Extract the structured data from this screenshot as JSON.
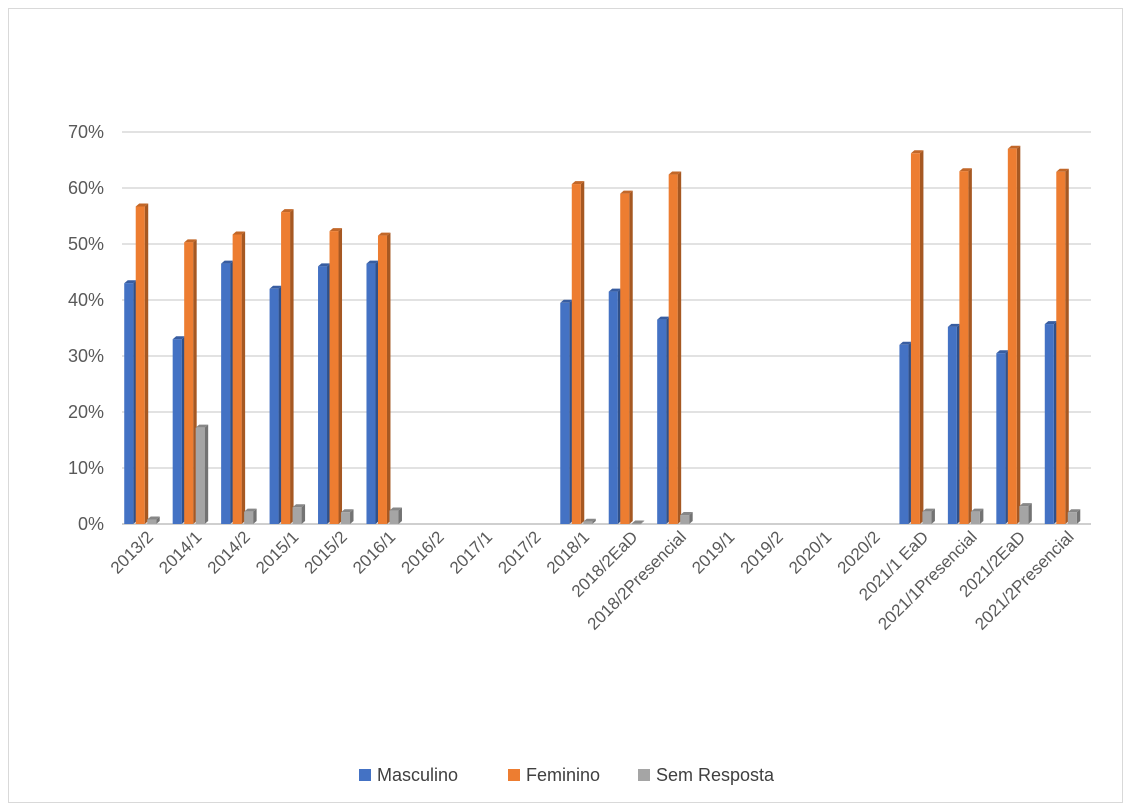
{
  "chart_data": {
    "type": "bar",
    "title": "",
    "xlabel": "",
    "ylabel": "",
    "ylim": [
      0,
      0.7
    ],
    "yticks": [
      "0%",
      "10%",
      "20%",
      "30%",
      "40%",
      "50%",
      "60%",
      "70%"
    ],
    "grid": true,
    "legend_position": "bottom",
    "categories": [
      "2013/2",
      "2014/1",
      "2014/2",
      "2015/1",
      "2015/2",
      "2016/1",
      "2016/2",
      "2017/1",
      "2017/2",
      "2018/1",
      "2018/2EaD",
      "2018/2Presencial",
      "2019/1",
      "2019/2",
      "2020/1",
      "2020/2",
      "2021/1 EaD",
      "2021/1Presencial",
      "2021/2EaD",
      "2021/2Presencial"
    ],
    "series": [
      {
        "name": "Masculino",
        "color": "#4472c4",
        "values": [
          0.43,
          0.33,
          0.465,
          0.42,
          0.46,
          0.465,
          null,
          null,
          null,
          0.395,
          0.415,
          0.365,
          null,
          null,
          null,
          null,
          0.32,
          0.352,
          0.305,
          0.357
        ]
      },
      {
        "name": "Feminino",
        "color": "#ed7d31",
        "values": [
          0.567,
          0.503,
          0.517,
          0.557,
          0.523,
          0.515,
          null,
          null,
          null,
          0.607,
          0.59,
          0.624,
          null,
          null,
          null,
          null,
          0.662,
          0.63,
          0.67,
          0.629
        ]
      },
      {
        "name": "Sem Resposta",
        "color": "#a5a5a5",
        "values": [
          0.008,
          0.172,
          0.022,
          0.03,
          0.021,
          0.024,
          null,
          null,
          null,
          0.004,
          0.001,
          0.016,
          null,
          null,
          null,
          null,
          0.022,
          0.022,
          0.032,
          0.021
        ]
      }
    ]
  }
}
